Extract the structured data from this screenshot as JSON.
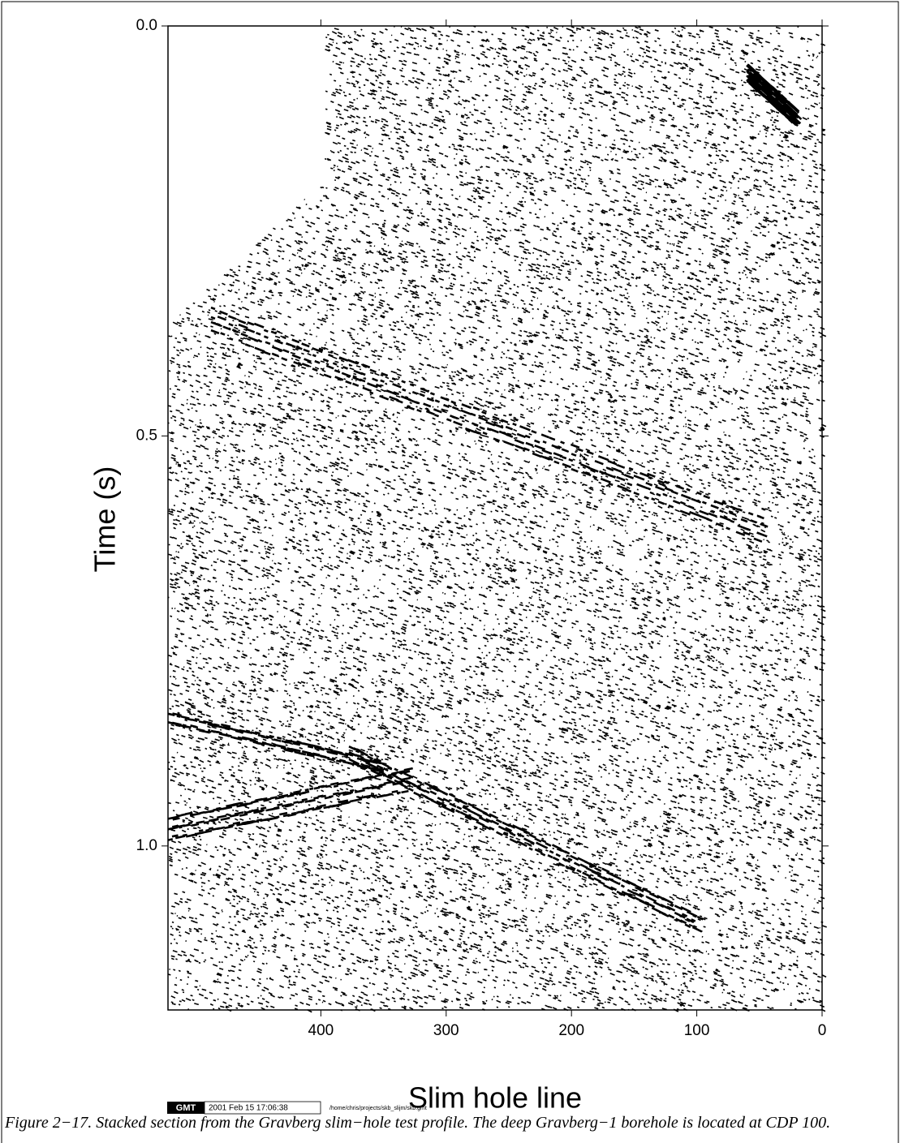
{
  "chart_data": {
    "type": "seismic",
    "xlabel": "Slim hole line",
    "ylabel": "Time (s)",
    "xlim": [
      522,
      0
    ],
    "xticks": [
      400,
      300,
      200,
      100,
      0
    ],
    "ylim": [
      0,
      1.2
    ],
    "yticks": [
      {
        "value": 0,
        "label": "0.0"
      },
      0.5,
      {
        "value": 1,
        "label": "1.0"
      }
    ],
    "stamp": {
      "logo": "GMT",
      "date": "2001 Feb 15 17:06:38",
      "file": "/home/chris/projects/skb_slijm/skb.gmt"
    }
  },
  "caption": "Figure 2−17. Stacked section from the Gravberg slim−hole test profile. The deep Gravberg−1 borehole is located at CDP 100."
}
